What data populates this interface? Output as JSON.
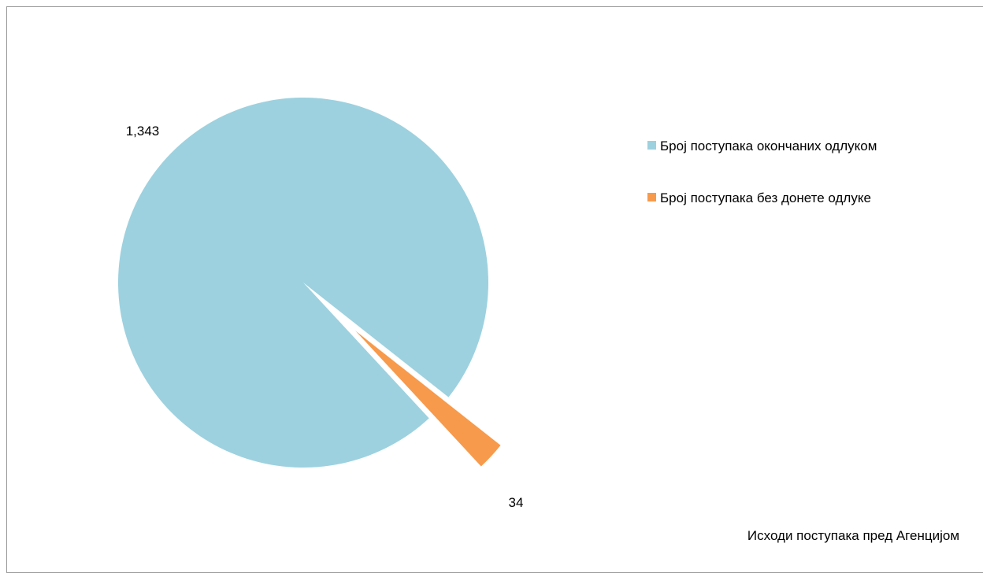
{
  "chart_data": {
    "type": "pie",
    "title": "Исходи поступака пред Агенцијом",
    "slices": [
      {
        "label": "Број поступака окончаних одлуком",
        "value": 1343,
        "display": "1,343",
        "color": "#9dd1df",
        "exploded": false
      },
      {
        "label": "Број поступака без донете одлуке",
        "value": 34,
        "display": "34",
        "color": "#f79a4b",
        "exploded": true
      }
    ],
    "legend": {
      "position": "right"
    }
  }
}
